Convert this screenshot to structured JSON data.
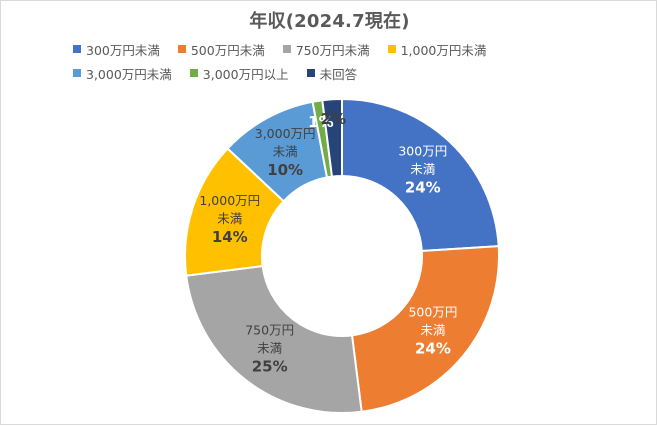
{
  "chart_data": {
    "type": "pie",
    "variant": "donut",
    "title": "年収(2024.7現在)",
    "legend_position": "top",
    "categories": [
      "300万円未満",
      "500万円未満",
      "750万円未満",
      "1,000万円未満",
      "3,000万円未満",
      "3,000万円以上",
      "未回答"
    ],
    "values": [
      24,
      24,
      25,
      14,
      10,
      1,
      2
    ],
    "data_labels": [
      "24%",
      "24%",
      "25%",
      "14%",
      "10%",
      "1%",
      "2%"
    ],
    "slice_label_lines": [
      [
        "300万円",
        "未満"
      ],
      [
        "500万円",
        "未満"
      ],
      [
        "750万円",
        "未満"
      ],
      [
        "1,000万円",
        "未満"
      ],
      [
        "3,000万円",
        "未満"
      ],
      [],
      []
    ],
    "colors": [
      "#4472C4",
      "#ED7D31",
      "#A5A5A5",
      "#FFC000",
      "#5B9BD5",
      "#70AD47",
      "#264478"
    ]
  }
}
